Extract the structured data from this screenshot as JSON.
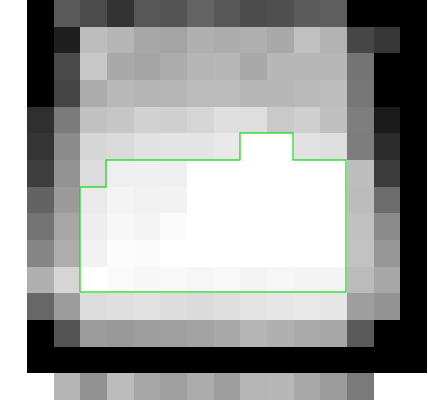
{
  "image": {
    "grid_cols": 15,
    "grid_rows": 15,
    "outline_color": "#19d419",
    "pixels": [
      [
        "#000000",
        "#5a5a5a",
        "#4b4b4b",
        "#333333",
        "#575757",
        "#545454",
        "#646464",
        "#575757",
        "#4c4c4c",
        "#4f4f4f",
        "#5b5b5b",
        "#5e5e5e",
        "#000000",
        "#000000",
        "#000000"
      ],
      [
        "#000000",
        "#1f1f1f",
        "#bdbdbd",
        "#b5b5b5",
        "#a7a7a7",
        "#a4a4a4",
        "#b0b0b0",
        "#acacac",
        "#b0b0b0",
        "#a9a9a9",
        "#c0c0c0",
        "#b2b2b2",
        "#474747",
        "#373737",
        "#000000"
      ],
      [
        "#000000",
        "#4a4a4a",
        "#c8c8c8",
        "#a9a9a9",
        "#a4a4a4",
        "#acacac",
        "#b5b5b5",
        "#b7b7b7",
        "#a9a9a9",
        "#b7b7b7",
        "#b7b7b7",
        "#b6b6b6",
        "#747474",
        "#000000",
        "#000000"
      ],
      [
        "#000000",
        "#444444",
        "#acacac",
        "#b8b8b8",
        "#b5b5b5",
        "#b6b6b6",
        "#bbbbbb",
        "#bbbbbb",
        "#b7b7b7",
        "#b7b7b7",
        "#b9b9b9",
        "#bebebe",
        "#777777",
        "#000000",
        "#000000"
      ],
      [
        "#2f2f2f",
        "#7b7b7b",
        "#c1c1c1",
        "#c6c6c6",
        "#d1d1d1",
        "#cfcfcf",
        "#d5d5d5",
        "#dfdfdf",
        "#dedede",
        "#c9c9c9",
        "#cfcfcf",
        "#bfbfbf",
        "#7e7e7e",
        "#1a1a1a",
        "#000000"
      ],
      [
        "#343434",
        "#8b8b8b",
        "#d6d6d6",
        "#dadada",
        "#e2e2e2",
        "#e4e4e4",
        "#e4e4e4",
        "#e8e8e8",
        "#ffffff",
        "#ffffff",
        "#e2e2e2",
        "#dedede",
        "#7d7d7d",
        "#2c2c2c",
        "#000000"
      ],
      [
        "#3e3e3e",
        "#939393",
        "#dcdcdc",
        "#efefef",
        "#f0f0f0",
        "#efefef",
        "#ffffff",
        "#ffffff",
        "#ffffff",
        "#ffffff",
        "#ffffff",
        "#ffffff",
        "#bdbdbd",
        "#3b3b3b",
        "#000000"
      ],
      [
        "#636363",
        "#9b9b9b",
        "#eaeaea",
        "#f4f4f4",
        "#f1f1f1",
        "#f2f2f2",
        "#ffffff",
        "#ffffff",
        "#ffffff",
        "#ffffff",
        "#ffffff",
        "#ffffff",
        "#bcbcbc",
        "#6c6c6c",
        "#000000"
      ],
      [
        "#737373",
        "#a6a6a6",
        "#eeeeee",
        "#f7f7f7",
        "#f3f3f3",
        "#fbfbfb",
        "#ffffff",
        "#ffffff",
        "#ffffff",
        "#ffffff",
        "#ffffff",
        "#ffffff",
        "#c0c0c0",
        "#8a8a8a",
        "#000000"
      ],
      [
        "#868686",
        "#adadad",
        "#f2f2f2",
        "#fcfcfc",
        "#fbfbfb",
        "#ffffff",
        "#ffffff",
        "#ffffff",
        "#ffffff",
        "#ffffff",
        "#ffffff",
        "#ffffff",
        "#c2c2c2",
        "#969696",
        "#000000"
      ],
      [
        "#b0b0b0",
        "#d5d5d5",
        "#ffffff",
        "#fafafa",
        "#f7f7f7",
        "#f8f8f8",
        "#f6f6f6",
        "#f9f9f9",
        "#f3f3f3",
        "#f6f6f6",
        "#f4f4f4",
        "#f4f4f4",
        "#bbbbbb",
        "#a7a7a7",
        "#000000"
      ],
      [
        "#676767",
        "#9c9c9c",
        "#dcdcdc",
        "#dfdfdf",
        "#e2e2e2",
        "#dddddd",
        "#dbdbdb",
        "#dfdfdf",
        "#e3e3e3",
        "#e6e6e6",
        "#e8e8e8",
        "#e5e5e5",
        "#9e9e9e",
        "#939393",
        "#000000"
      ],
      [
        "#000000",
        "#555555",
        "#9c9c9c",
        "#999999",
        "#9d9d9d",
        "#9f9f9f",
        "#a3a3a3",
        "#a9a9a9",
        "#b5b5b5",
        "#b0b0b0",
        "#aaaaaa",
        "#a7a7a7",
        "#5a5a5a",
        "#000000",
        "#000000"
      ],
      [
        "#000000",
        "#000000",
        "#000000",
        "#000000",
        "#000000",
        "#000000",
        "#000000",
        "#000000",
        "#000000",
        "#000000",
        "#000000",
        "#000000",
        "#000000",
        "#000000",
        "#000000"
      ],
      [
        "#ffffff",
        "#b4b4b4",
        "#929292",
        "#bcbcbc",
        "#a7a7a7",
        "#9f9f9f",
        "#acacac",
        "#9d9d9d",
        "#b6b6b6",
        "#b7b7b7",
        "#a9a9a9",
        "#9c9c9c",
        "#7a7a7a",
        "#ffffff",
        "#ffffff"
      ]
    ]
  }
}
